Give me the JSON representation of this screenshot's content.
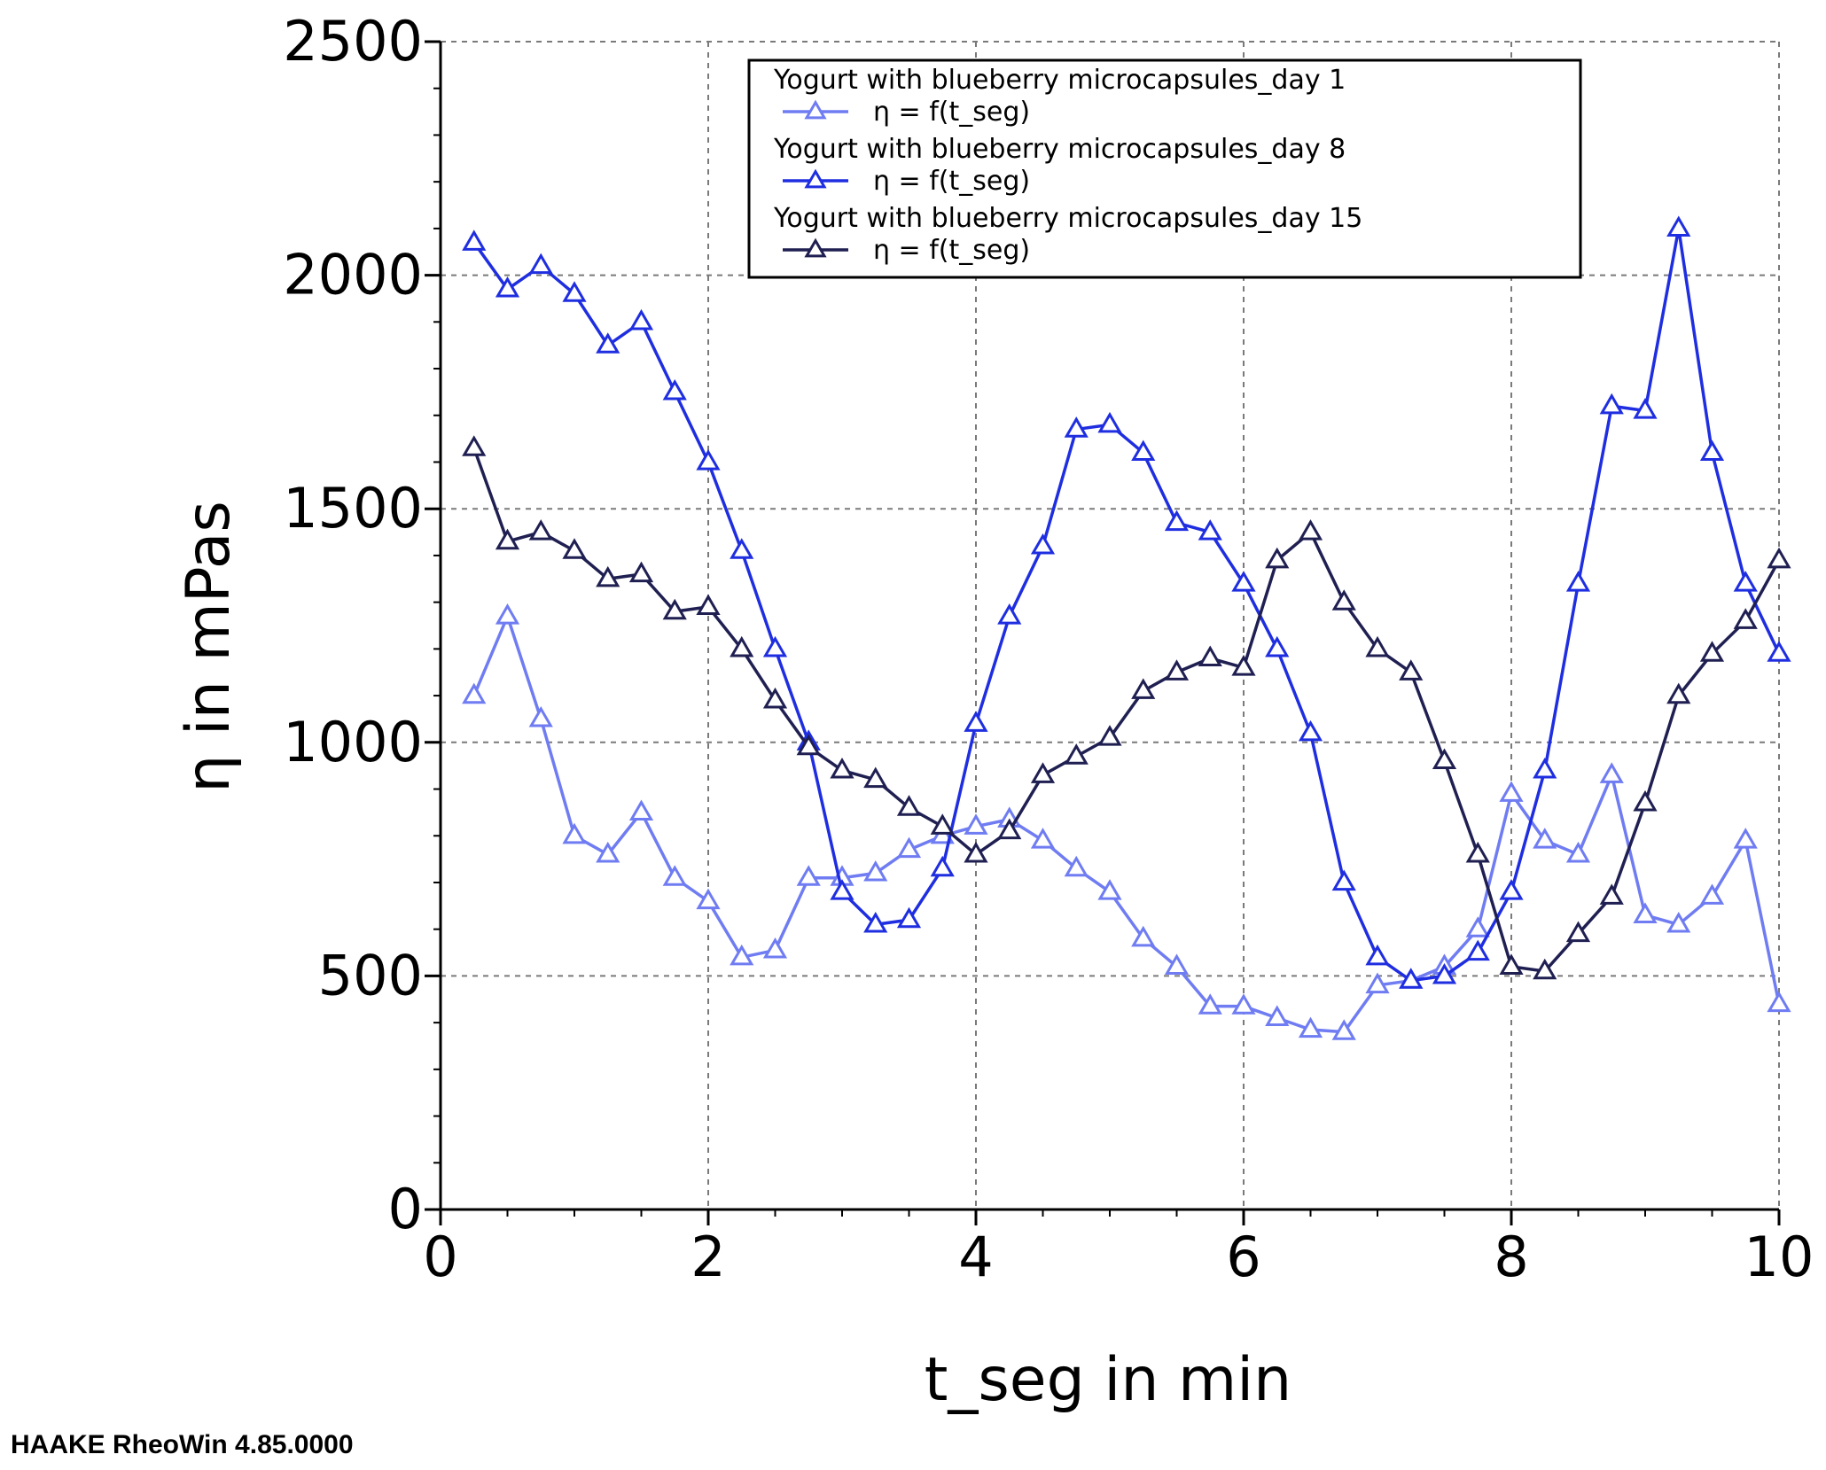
{
  "chart_data": {
    "type": "line",
    "xlabel": "t_seg in min",
    "ylabel": "η in mPas",
    "xlim": [
      0,
      10
    ],
    "ylim": [
      0,
      2500
    ],
    "xticks": [
      "0",
      "2",
      "4",
      "6",
      "8",
      "10"
    ],
    "yticks": [
      "0",
      "500",
      "1000",
      "1500",
      "2000",
      "2500"
    ],
    "grid": true,
    "legend_position": "top-right",
    "marker": "triangle-open",
    "x": [
      0.25,
      0.5,
      0.75,
      1.0,
      1.25,
      1.5,
      1.75,
      2.0,
      2.25,
      2.5,
      2.75,
      3.0,
      3.25,
      3.5,
      3.75,
      4.0,
      4.25,
      4.5,
      4.75,
      5.0,
      5.25,
      5.5,
      5.75,
      6.0,
      6.25,
      6.5,
      6.75,
      7.0,
      7.25,
      7.5,
      7.75,
      8.0,
      8.25,
      8.5,
      8.75,
      9.0,
      9.25,
      9.5,
      9.75,
      10.0
    ],
    "series": [
      {
        "name": "Yogurt with blueberry microcapsules_day 1",
        "label": "η = f(t_seg)",
        "color": "#6f7cf2",
        "values": [
          1100,
          1270,
          1050,
          800,
          760,
          850,
          710,
          660,
          540,
          555,
          710,
          710,
          720,
          770,
          800,
          820,
          835,
          790,
          730,
          680,
          580,
          520,
          435,
          435,
          410,
          385,
          380,
          480,
          490,
          520,
          600,
          890,
          790,
          760,
          930,
          630,
          610,
          670,
          790,
          440
        ]
      },
      {
        "name": "Yogurt with blueberry microcapsules_day 8",
        "label": "η = f(t_seg)",
        "color": "#1e2ee0",
        "values": [
          2070,
          1970,
          2020,
          1960,
          1850,
          1900,
          1750,
          1600,
          1410,
          1200,
          1000,
          680,
          610,
          620,
          730,
          1040,
          1270,
          1420,
          1670,
          1680,
          1620,
          1470,
          1450,
          1340,
          1200,
          1020,
          700,
          540,
          490,
          500,
          550,
          680,
          940,
          1340,
          1720,
          1710,
          2100,
          1620,
          1340,
          1190
        ]
      },
      {
        "name": "Yogurt with blueberry microcapsules_day 15",
        "label": "η = f(t_seg)",
        "color": "#1f1f52",
        "values": [
          1630,
          1430,
          1450,
          1410,
          1350,
          1360,
          1280,
          1290,
          1200,
          1090,
          990,
          940,
          920,
          860,
          820,
          760,
          810,
          930,
          970,
          1010,
          1110,
          1150,
          1180,
          1160,
          1390,
          1450,
          1300,
          1200,
          1150,
          960,
          760,
          520,
          510,
          590,
          670,
          870,
          1100,
          1190,
          1260,
          1390
        ]
      }
    ]
  },
  "footer": "HAAKE RheoWin 4.85.0000"
}
